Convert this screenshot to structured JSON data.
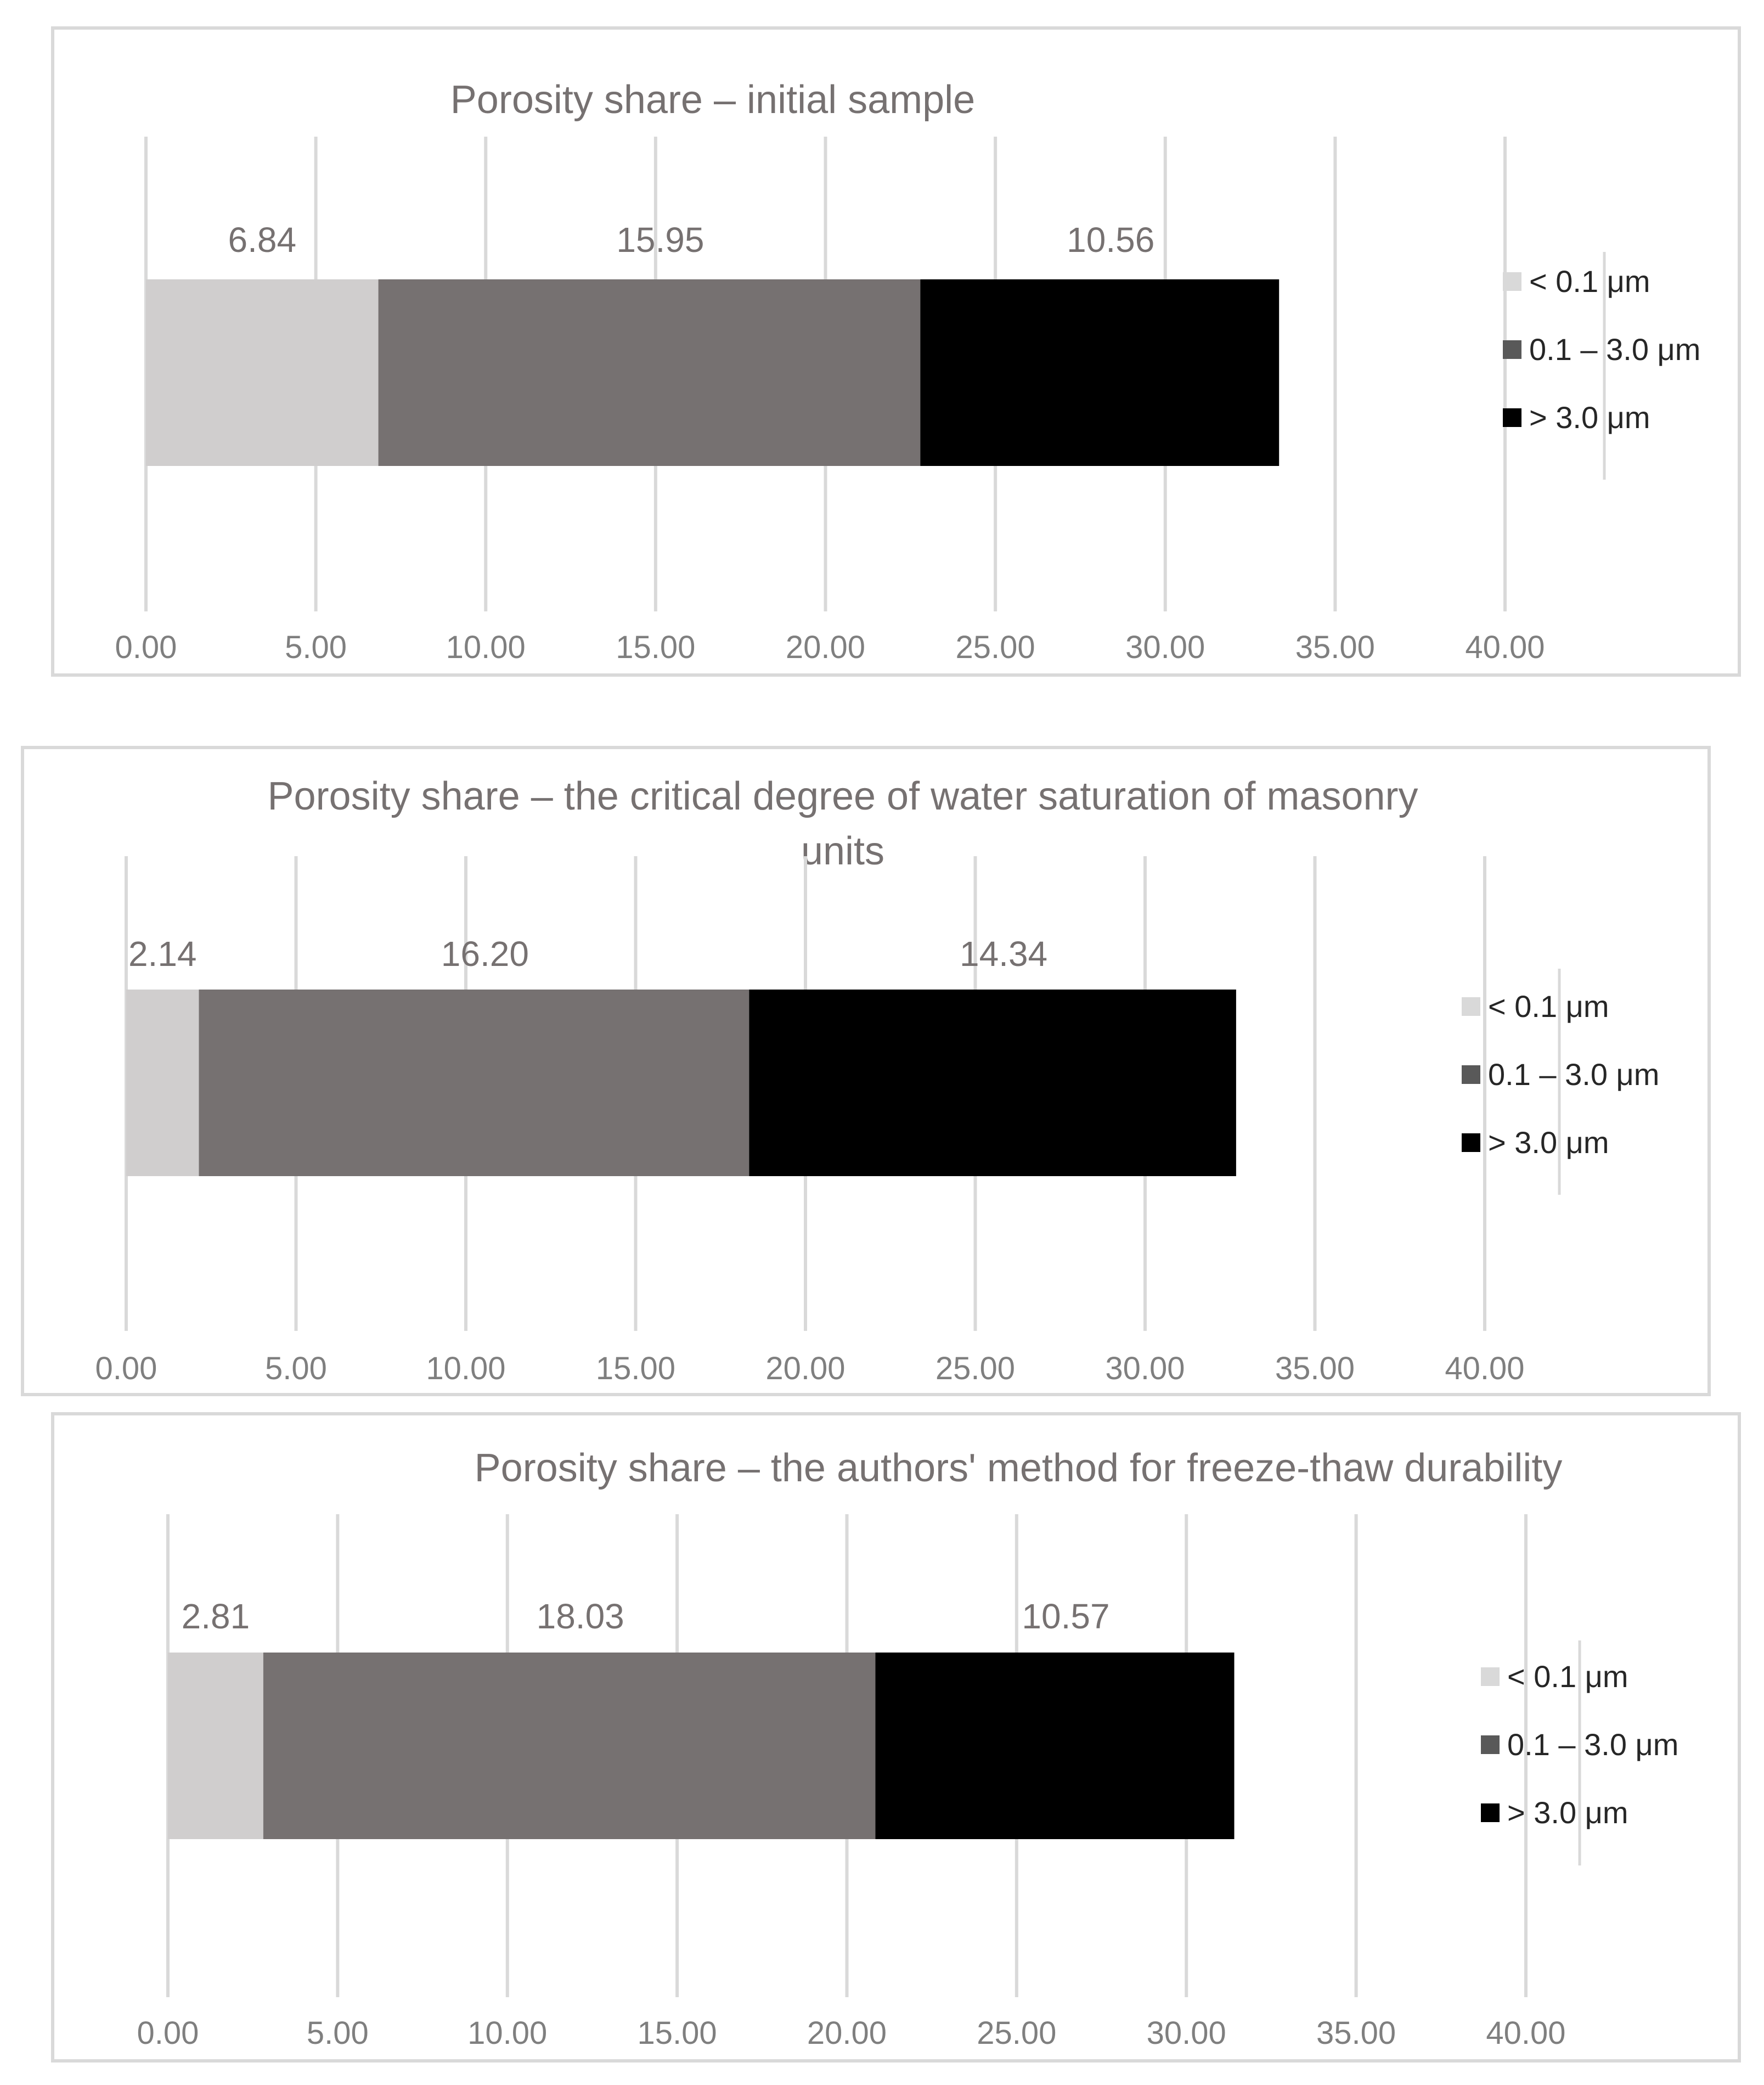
{
  "chart_data": [
    {
      "type": "bar",
      "orientation": "horizontal",
      "stacked": true,
      "title": "Porosity share – initial sample",
      "categories": [
        ""
      ],
      "series": [
        {
          "name": "< 0.1 μm",
          "values": [
            6.84
          ],
          "label": "6.84",
          "color": "#d0cece"
        },
        {
          "name": "0.1 – 3.0 μm",
          "values": [
            15.95
          ],
          "label": "15.95",
          "color": "#767171"
        },
        {
          "name": "> 3.0 μm",
          "values": [
            10.56
          ],
          "label": "10.56",
          "color": "#000000"
        }
      ],
      "xlim": [
        0,
        40
      ],
      "xticks": [
        "0.00",
        "5.00",
        "10.00",
        "15.00",
        "20.00",
        "25.00",
        "30.00",
        "35.00",
        "40.00"
      ],
      "grid": "vertical",
      "legend": "right"
    },
    {
      "type": "bar",
      "orientation": "horizontal",
      "stacked": true,
      "title": [
        "Porosity share – the critical degree of water saturation of masonry",
        "units"
      ],
      "categories": [
        ""
      ],
      "series": [
        {
          "name": "< 0.1 μm",
          "values": [
            2.14
          ],
          "label": "2.14",
          "color": "#d0cece"
        },
        {
          "name": "0.1 – 3.0 μm",
          "values": [
            16.2
          ],
          "label": "16.20",
          "color": "#767171"
        },
        {
          "name": "> 3.0 μm",
          "values": [
            14.34
          ],
          "label": "14.34",
          "color": "#000000"
        }
      ],
      "xlim": [
        0,
        40
      ],
      "xticks": [
        "0.00",
        "5.00",
        "10.00",
        "15.00",
        "20.00",
        "25.00",
        "30.00",
        "35.00",
        "40.00"
      ],
      "grid": "vertical",
      "legend": "right"
    },
    {
      "type": "bar",
      "orientation": "horizontal",
      "stacked": true,
      "title": "Porosity share – the authors' method for freeze-thaw durability",
      "categories": [
        ""
      ],
      "series": [
        {
          "name": "< 0.1 μm",
          "values": [
            2.81
          ],
          "label": "2.81",
          "color": "#d0cece"
        },
        {
          "name": "0.1 – 3.0 μm",
          "values": [
            18.03
          ],
          "label": "18.03",
          "color": "#767171"
        },
        {
          "name": "> 3.0 μm",
          "values": [
            10.57
          ],
          "label": "10.57",
          "color": "#000000"
        }
      ],
      "xlim": [
        0,
        40
      ],
      "xticks": [
        "0.00",
        "5.00",
        "10.00",
        "15.00",
        "20.00",
        "25.00",
        "30.00",
        "35.00",
        "40.00"
      ],
      "grid": "vertical",
      "legend": "right"
    }
  ]
}
